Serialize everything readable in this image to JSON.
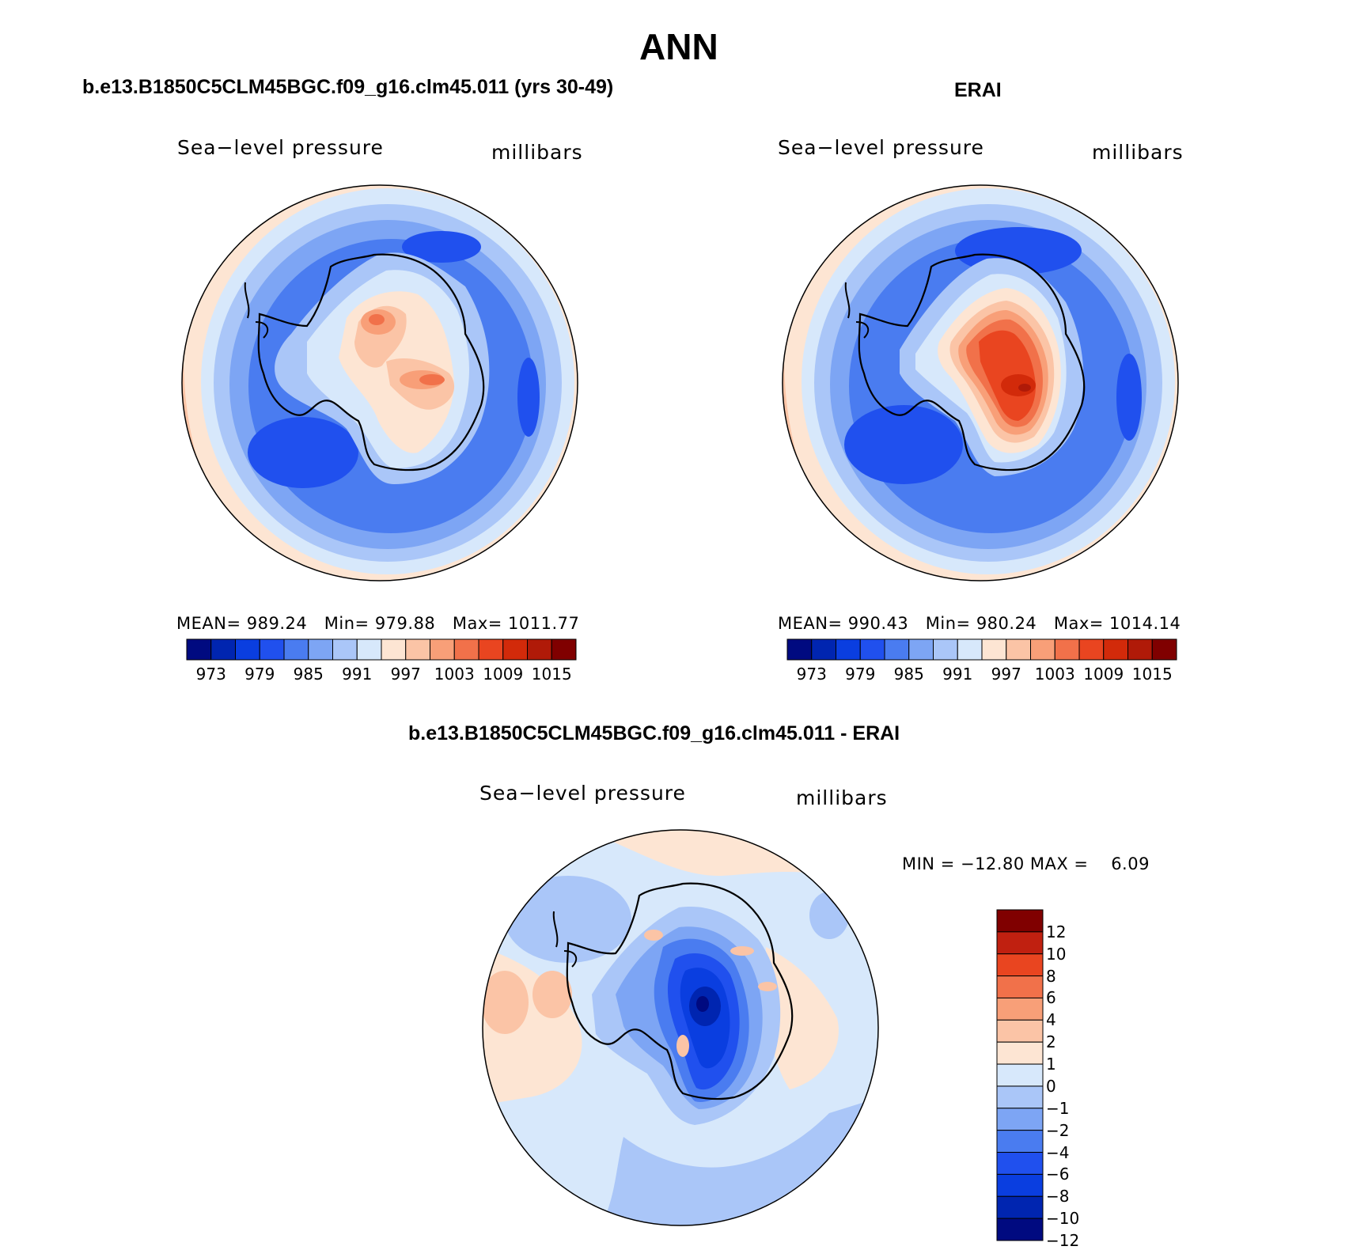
{
  "figure": {
    "title": "ANN",
    "colors": {
      "abs_scale": [
        "#000a80",
        "#0025b0",
        "#0a3ee0",
        "#2050ee",
        "#4a7cf0",
        "#7da5f4",
        "#aac6f8",
        "#d7e8fb",
        "#fde5d3",
        "#fbc4a6",
        "#f89f78",
        "#f1714a",
        "#e94520",
        "#d22a0a",
        "#b01a08",
        "#800000"
      ],
      "diff_scale": [
        "#000a80",
        "#0025b0",
        "#0a3ee0",
        "#2050ee",
        "#4a7cf0",
        "#7da5f4",
        "#aac6f8",
        "#d7e8fb",
        "#fde5d3",
        "#fbc4a6",
        "#f89f78",
        "#f1714a",
        "#e94520",
        "#c02010",
        "#800000"
      ]
    }
  },
  "panels": [
    {
      "title": "b.e13.B1850C5CLM45BGC.f09_g16.clm45.011 (yrs 30-49)",
      "variable": "Sea−level pressure",
      "units": "millibars",
      "stats": {
        "mean_label": "MEAN=",
        "mean": "989.24",
        "min_label": "Min=",
        "min": "979.88",
        "max_label": "Max=",
        "max": "1011.77"
      },
      "colorbar_ticks": [
        "973",
        "979",
        "985",
        "991",
        "997",
        "1003",
        "1009",
        "1015"
      ]
    },
    {
      "title": "ERAI",
      "variable": "Sea−level pressure",
      "units": "millibars",
      "stats": {
        "mean_label": "MEAN=",
        "mean": "990.43",
        "min_label": "Min=",
        "min": "980.24",
        "max_label": "Max=",
        "max": "1014.14"
      },
      "colorbar_ticks": [
        "973",
        "979",
        "985",
        "991",
        "997",
        "1003",
        "1009",
        "1015"
      ]
    }
  ],
  "difference": {
    "title": "b.e13.B1850C5CLM45BGC.f09_g16.clm45.011 - ERAI",
    "variable": "Sea−level pressure",
    "units": "millibars",
    "stats": "MIN = −12.80 MAX =    6.09",
    "colorbar_ticks": [
      "12",
      "10",
      "8",
      "6",
      "4",
      "2",
      "1",
      "0",
      "−1",
      "−2",
      "−4",
      "−6",
      "−8",
      "−10",
      "−12"
    ]
  }
}
